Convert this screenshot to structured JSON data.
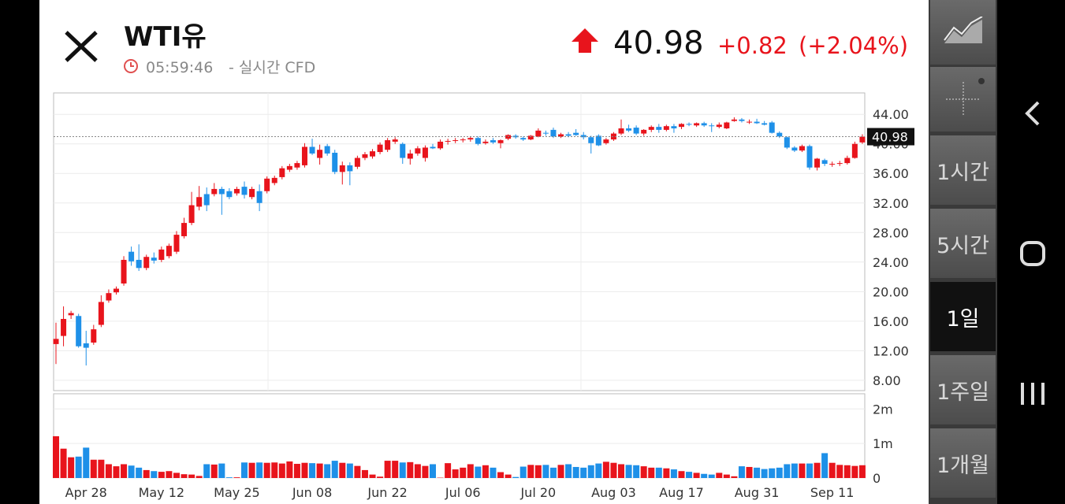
{
  "header": {
    "symbol": "WTI유",
    "time": "05:59:46",
    "subtitle": "- 실시간 CFD",
    "price": "40.98",
    "change": "+0.82",
    "change_pct": "(+2.04%)"
  },
  "sidebar": {
    "intervals": [
      "1시간",
      "5시간",
      "1일",
      "1주일",
      "1개월"
    ],
    "selected": "1일"
  },
  "chart_data": [
    {
      "type": "candlestick",
      "up_color": "#e8141c",
      "down_color": "#1e90e8",
      "current_price": 40.98,
      "ylim": [
        6.6,
        46.9
      ],
      "yticks": [
        {
          "value": 8,
          "label": "8.00"
        },
        {
          "value": 12,
          "label": "12.00"
        },
        {
          "value": 16,
          "label": "16.00"
        },
        {
          "value": 20,
          "label": "20.00"
        },
        {
          "value": 24,
          "label": "24.00"
        },
        {
          "value": 28,
          "label": "28.00"
        },
        {
          "value": 32,
          "label": "32.00"
        },
        {
          "value": 36,
          "label": "36.00"
        },
        {
          "value": 40,
          "label": "40.00"
        },
        {
          "value": 44,
          "label": "44.00"
        }
      ],
      "current_label": "40.98",
      "open": [
        12.9,
        14.0,
        16.8,
        16.7,
        13.0,
        13.1,
        15.5,
        18.8,
        19.9,
        21.1,
        25.4,
        24.3,
        23.2,
        24.6,
        24.3,
        24.8,
        25.4,
        27.5,
        29.3,
        31.5,
        33.2,
        33.2,
        33.9,
        33.6,
        33.3,
        34.2,
        32.8,
        33.6,
        33.6,
        34.7,
        35.5,
        36.5,
        36.8,
        37.1,
        39.6,
        38.1,
        39.7,
        38.8,
        36.2,
        37.1,
        36.9,
        38.1,
        38.3,
        38.9,
        39.2,
        40.3,
        40.0,
        38.0,
        38.7,
        38.1,
        39.6,
        39.4,
        40.3,
        40.4,
        40.5,
        40.6,
        40.8,
        40.1,
        40.5,
        40.1,
        40.7,
        41.1,
        40.8,
        40.6,
        41.0,
        41.5,
        41.9,
        41.0,
        41.3,
        41.5,
        41.2,
        40.9,
        41.1,
        40.1,
        40.6,
        41.4,
        42.1,
        42.2,
        41.4,
        41.9,
        42.3,
        41.9,
        42.4,
        42.3,
        42.7,
        42.5,
        42.8,
        42.5,
        42.3,
        42.1,
        43.1,
        43.3,
        42.9,
        43.0,
        42.8,
        42.9,
        41.5,
        40.9,
        39.5,
        39.1,
        39.7,
        36.8,
        37.8,
        37.2,
        37.3,
        37.4,
        38.1,
        40.2
      ],
      "high": [
        15.8,
        18.0,
        17.4,
        17.0,
        14.7,
        15.5,
        19.5,
        20.3,
        20.7,
        24.8,
        26.1,
        26.4,
        25.0,
        25.3,
        26.1,
        26.5,
        28.2,
        30.0,
        33.5,
        34.3,
        34.1,
        34.7,
        34.2,
        34.0,
        34.2,
        34.9,
        34.2,
        34.5,
        35.6,
        35.7,
        37.0,
        37.3,
        37.7,
        40.1,
        40.7,
        39.9,
        40.0,
        39.2,
        37.6,
        37.5,
        38.4,
        38.9,
        39.3,
        40.2,
        40.8,
        40.9,
        40.2,
        39.2,
        39.7,
        39.8,
        40.0,
        40.6,
        40.7,
        40.8,
        40.8,
        41.0,
        41.0,
        40.6,
        40.8,
        40.6,
        41.3,
        41.3,
        41.0,
        41.2,
        42.1,
        41.8,
        42.2,
        41.5,
        41.6,
        42.0,
        41.6,
        41.1,
        41.3,
        40.8,
        41.6,
        43.3,
        42.6,
        42.5,
        42.0,
        42.5,
        42.7,
        42.6,
        42.7,
        42.8,
        42.9,
        42.9,
        43.0,
        42.8,
        42.9,
        43.0,
        43.6,
        43.5,
        43.3,
        43.4,
        43.1,
        43.1,
        41.7,
        41.0,
        39.7,
        39.9,
        39.9,
        38.1,
        38.0,
        37.6,
        37.7,
        38.4,
        40.3,
        41.3
      ],
      "low": [
        10.2,
        12.6,
        16.3,
        12.4,
        10.0,
        12.8,
        15.2,
        18.5,
        19.6,
        20.8,
        23.5,
        22.8,
        22.9,
        23.8,
        24.0,
        24.5,
        25.1,
        27.2,
        29.0,
        31.0,
        30.9,
        32.9,
        30.4,
        32.5,
        33.0,
        32.6,
        32.5,
        30.9,
        33.3,
        34.4,
        35.2,
        36.2,
        36.5,
        36.8,
        38.5,
        37.2,
        38.4,
        35.9,
        34.5,
        34.4,
        36.6,
        37.8,
        38.0,
        38.6,
        38.9,
        40.0,
        37.3,
        37.2,
        38.4,
        37.6,
        39.3,
        39.2,
        39.9,
        40.1,
        40.2,
        40.3,
        39.8,
        39.9,
        40.0,
        39.4,
        40.5,
        40.7,
        40.4,
        40.5,
        40.9,
        41.1,
        40.8,
        40.8,
        40.9,
        41.1,
        40.6,
        38.7,
        39.7,
        39.9,
        40.4,
        41.2,
        41.6,
        41.2,
        41.1,
        41.6,
        41.5,
        41.7,
        41.5,
        42.0,
        42.4,
        42.3,
        42.3,
        41.6,
        42.1,
        42.0,
        43.0,
        42.9,
        42.7,
        42.7,
        42.5,
        41.4,
        40.8,
        39.3,
        38.9,
        38.9,
        36.5,
        36.4,
        37.0,
        36.9,
        37.0,
        37.2,
        38.0,
        40.0
      ],
      "close": [
        13.6,
        16.3,
        17.1,
        12.6,
        12.4,
        14.9,
        18.6,
        19.8,
        20.4,
        24.3,
        24.1,
        23.2,
        24.7,
        24.2,
        25.7,
        26.2,
        27.7,
        29.3,
        31.7,
        32.8,
        31.7,
        33.9,
        33.2,
        32.8,
        33.9,
        33.1,
        33.9,
        32.0,
        35.3,
        35.4,
        36.7,
        37.0,
        37.4,
        39.6,
        38.7,
        39.2,
        38.7,
        36.2,
        37.1,
        36.3,
        38.1,
        38.6,
        39.0,
        39.9,
        40.5,
        40.6,
        38.1,
        38.7,
        39.4,
        39.5,
        39.4,
        40.3,
        40.4,
        40.5,
        40.6,
        40.8,
        40.0,
        40.3,
        40.2,
        40.5,
        41.2,
        40.9,
        40.6,
        41.1,
        41.8,
        41.4,
        41.0,
        41.3,
        41.1,
        41.2,
        40.9,
        40.1,
        39.8,
        40.6,
        41.4,
        42.1,
        41.8,
        41.4,
        41.9,
        42.3,
        41.9,
        42.4,
        42.1,
        42.7,
        42.6,
        42.8,
        42.5,
        42.4,
        42.6,
        42.9,
        43.3,
        43.1,
        43.0,
        42.8,
        42.6,
        41.5,
        41.0,
        39.5,
        39.1,
        39.7,
        36.8,
        38.0,
        37.3,
        37.3,
        37.4,
        38.1,
        40.0,
        40.98
      ]
    },
    {
      "type": "bar",
      "ylim": [
        0,
        2440000
      ],
      "yticks": [
        0,
        {
          "value": 1000000,
          "label": "1m"
        },
        {
          "value": 2000000,
          "label": "2m"
        }
      ],
      "categories": [
        null,
        null,
        null,
        null,
        "Apr 28",
        null,
        null,
        null,
        null,
        null,
        null,
        null,
        null,
        null,
        "May 12",
        null,
        null,
        null,
        null,
        null,
        null,
        null,
        null,
        null,
        "May 25",
        null,
        null,
        null,
        null,
        null,
        null,
        null,
        null,
        null,
        "Jun 08",
        null,
        null,
        null,
        null,
        null,
        null,
        null,
        null,
        null,
        "Jun 22",
        null,
        null,
        null,
        null,
        null,
        null,
        null,
        null,
        null,
        "Jul 06",
        null,
        null,
        null,
        null,
        null,
        null,
        null,
        null,
        null,
        "Jul 20",
        null,
        null,
        null,
        null,
        null,
        null,
        null,
        null,
        null,
        "Aug 03",
        null,
        null,
        null,
        null,
        null,
        null,
        null,
        null,
        "Aug 17",
        null,
        null,
        null,
        null,
        null,
        null,
        null,
        null,
        null,
        "Aug 31",
        null,
        null,
        null,
        null,
        null,
        null,
        null,
        null,
        null,
        "Sep 11",
        null,
        null,
        null,
        null
      ],
      "values": [
        1210000,
        850000,
        600000,
        620000,
        880000,
        530000,
        530000,
        400000,
        340000,
        400000,
        360000,
        300000,
        230000,
        200000,
        180000,
        200000,
        150000,
        110000,
        100000,
        60000,
        400000,
        390000,
        420000,
        20000,
        20000,
        450000,
        440000,
        450000,
        440000,
        450000,
        420000,
        480000,
        410000,
        440000,
        430000,
        420000,
        400000,
        500000,
        440000,
        420000,
        350000,
        230000,
        100000,
        40000,
        500000,
        500000,
        450000,
        460000,
        400000,
        350000,
        400000,
        10000,
        430000,
        250000,
        300000,
        400000,
        330000,
        370000,
        300000,
        170000,
        100000,
        30000,
        330000,
        380000,
        370000,
        380000,
        300000,
        380000,
        400000,
        320000,
        300000,
        370000,
        420000,
        470000,
        440000,
        400000,
        380000,
        370000,
        340000,
        300000,
        300000,
        280000,
        250000,
        200000,
        180000,
        150000,
        120000,
        100000,
        150000,
        100000,
        50000,
        340000,
        320000,
        300000,
        260000,
        280000,
        300000,
        400000,
        420000,
        420000,
        420000,
        440000,
        720000,
        440000,
        380000,
        370000,
        350000,
        370000
      ]
    }
  ]
}
